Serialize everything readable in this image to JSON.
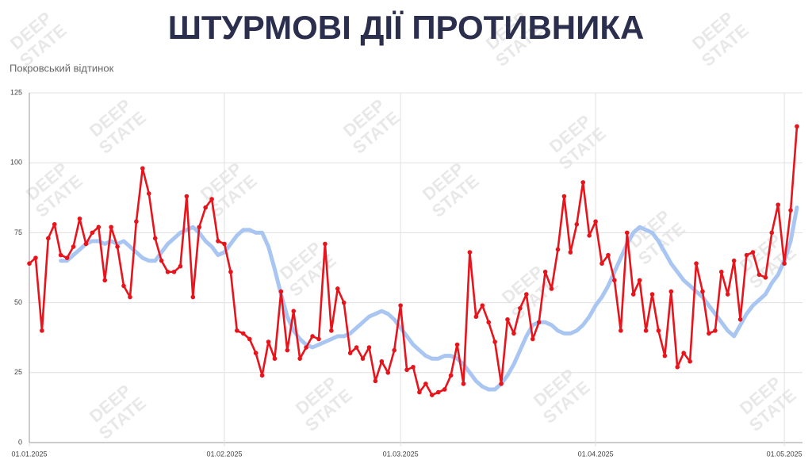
{
  "chart_data": {
    "type": "line",
    "title": "ШТУРМОВІ ДІЇ ПРОТИВНИКА",
    "subtitle": "Покровський відтинок",
    "watermark": [
      "DEEP",
      "STATE"
    ],
    "x": [
      "01.01.2025",
      "02.01.2025",
      "03.01.2025",
      "04.01.2025",
      "05.01.2025",
      "06.01.2025",
      "07.01.2025",
      "08.01.2025",
      "09.01.2025",
      "10.01.2025",
      "11.01.2025",
      "12.01.2025",
      "13.01.2025",
      "14.01.2025",
      "15.01.2025",
      "16.01.2025",
      "17.01.2025",
      "18.01.2025",
      "19.01.2025",
      "20.01.2025",
      "21.01.2025",
      "22.01.2025",
      "23.01.2025",
      "24.01.2025",
      "25.01.2025",
      "26.01.2025",
      "27.01.2025",
      "28.01.2025",
      "29.01.2025",
      "30.01.2025",
      "31.01.2025",
      "01.02.2025",
      "02.02.2025",
      "03.02.2025",
      "04.02.2025",
      "05.02.2025",
      "06.02.2025",
      "07.02.2025",
      "08.02.2025",
      "09.02.2025",
      "10.02.2025",
      "11.02.2025",
      "12.02.2025",
      "13.02.2025",
      "14.02.2025",
      "15.02.2025",
      "16.02.2025",
      "17.02.2025",
      "18.02.2025",
      "19.02.2025",
      "20.02.2025",
      "21.02.2025",
      "22.02.2025",
      "23.02.2025",
      "24.02.2025",
      "25.02.2025",
      "26.02.2025",
      "27.02.2025",
      "28.02.2025",
      "01.03.2025",
      "02.03.2025",
      "03.03.2025",
      "04.03.2025",
      "05.03.2025",
      "06.03.2025",
      "07.03.2025",
      "08.03.2025",
      "09.03.2025",
      "10.03.2025",
      "11.03.2025",
      "12.03.2025",
      "13.03.2025",
      "14.03.2025",
      "15.03.2025",
      "16.03.2025",
      "17.03.2025",
      "18.03.2025",
      "19.03.2025",
      "20.03.2025",
      "21.03.2025",
      "22.03.2025",
      "23.03.2025",
      "24.03.2025",
      "25.03.2025",
      "26.03.2025",
      "27.03.2025",
      "28.03.2025",
      "29.03.2025",
      "30.03.2025",
      "31.03.2025",
      "01.04.2025",
      "02.04.2025",
      "03.04.2025",
      "04.04.2025",
      "05.04.2025",
      "06.04.2025",
      "07.04.2025",
      "08.04.2025",
      "09.04.2025",
      "10.04.2025",
      "11.04.2025",
      "12.04.2025",
      "13.04.2025",
      "14.04.2025",
      "15.04.2025",
      "16.04.2025",
      "17.04.2025",
      "18.04.2025",
      "19.04.2025",
      "20.04.2025",
      "21.04.2025",
      "22.04.2025",
      "23.04.2025",
      "24.04.2025",
      "25.04.2025",
      "26.04.2025",
      "27.04.2025",
      "28.04.2025",
      "29.04.2025",
      "30.04.2025",
      "01.05.2025",
      "02.05.2025",
      "03.05.2025"
    ],
    "series": [
      {
        "color": "#a9c6f3",
        "width": 5,
        "markers": false,
        "values": [
          null,
          null,
          null,
          null,
          null,
          65,
          65,
          67,
          69,
          71,
          72,
          72,
          71,
          72,
          71,
          72,
          70,
          68,
          66,
          65,
          65,
          68,
          71,
          73,
          75,
          76,
          77,
          75,
          72,
          70,
          67,
          68,
          71,
          74,
          76,
          76,
          75,
          75,
          70,
          62,
          53,
          45,
          40,
          37,
          35,
          34,
          35,
          36,
          37,
          38,
          38,
          39,
          41,
          43,
          45,
          46,
          47,
          46,
          44,
          41,
          38,
          35,
          33,
          31,
          30,
          30,
          31,
          31,
          30,
          28,
          25,
          22,
          20,
          19,
          19,
          21,
          24,
          28,
          33,
          38,
          42,
          43,
          43,
          42,
          40,
          39,
          39,
          40,
          42,
          45,
          49,
          52,
          56,
          61,
          66,
          71,
          75,
          77,
          76,
          75,
          72,
          68,
          64,
          61,
          58,
          56,
          54,
          52,
          49,
          46,
          43,
          40,
          38,
          42,
          46,
          49,
          51,
          53,
          57,
          60,
          65,
          72,
          84
        ]
      },
      {
        "color": "#e8141b",
        "width": 2.6,
        "markers": true,
        "values": [
          64,
          66,
          40,
          73,
          78,
          67,
          66,
          70,
          80,
          71,
          75,
          77,
          58,
          77,
          70,
          56,
          52,
          79,
          98,
          89,
          73,
          65,
          61,
          61,
          63,
          88,
          52,
          77,
          84,
          87,
          72,
          71,
          61,
          40,
          39,
          37,
          32,
          24,
          36,
          30,
          54,
          33,
          47,
          30,
          34,
          38,
          37,
          71,
          40,
          55,
          50,
          32,
          34,
          30,
          34,
          22,
          29,
          25,
          33,
          49,
          26,
          27,
          18,
          21,
          17,
          18,
          19,
          24,
          35,
          21,
          68,
          45,
          49,
          43,
          36,
          21,
          44,
          39,
          48,
          53,
          37,
          43,
          61,
          55,
          69,
          88,
          68,
          78,
          93,
          74,
          79,
          64,
          67,
          58,
          40,
          75,
          53,
          58,
          40,
          53,
          40,
          31,
          54,
          27,
          32,
          29,
          64,
          54,
          39,
          40,
          61,
          53,
          65,
          44,
          67,
          68,
          60,
          59,
          75,
          85,
          64,
          83,
          113
        ]
      }
    ],
    "xlim": [
      "01.01.2025",
      "03.05.2025"
    ],
    "xticks": [
      "01.01.2025",
      "01.02.2025",
      "01.03.2025",
      "01.04.2025",
      "01.05.2025"
    ],
    "ylim": [
      0,
      125
    ],
    "yticks": [
      0,
      25,
      50,
      75,
      100,
      125
    ],
    "grid": true
  }
}
